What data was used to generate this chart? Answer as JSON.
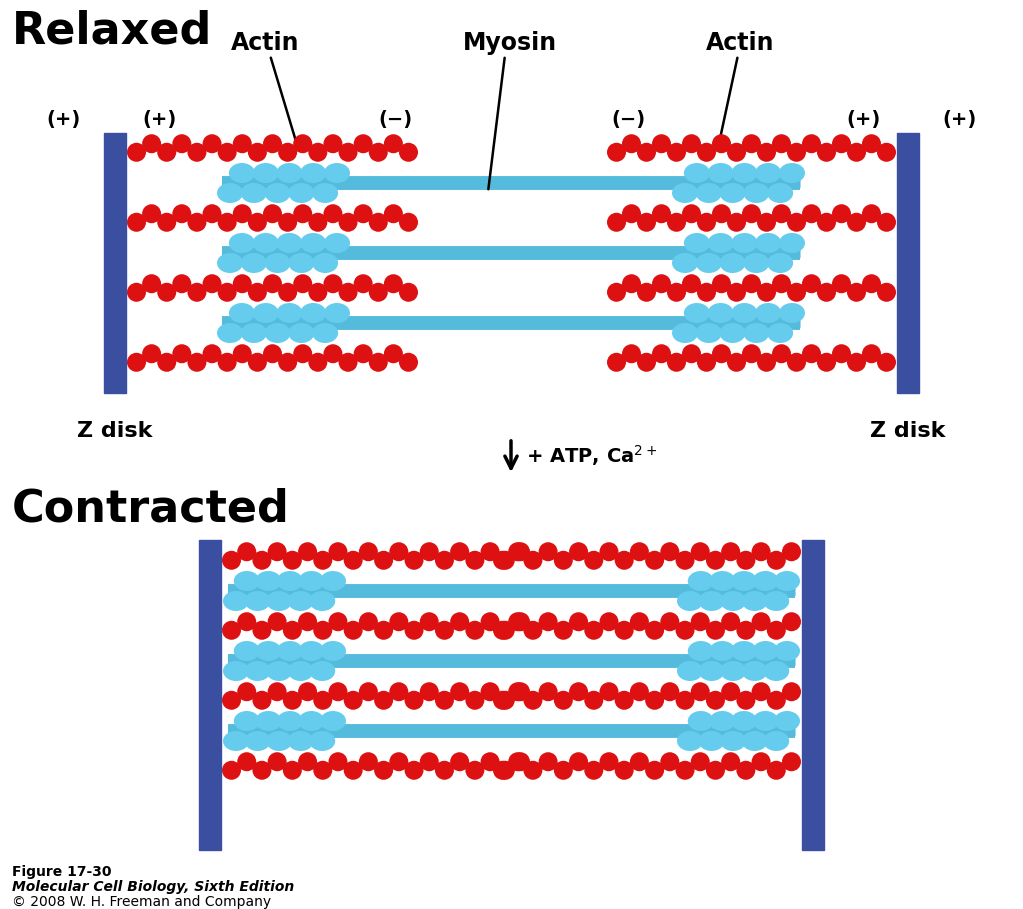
{
  "bg_color": "#ffffff",
  "actin_color": "#dd1111",
  "myosin_shaft_color": "#55bbdd",
  "myosin_head_color": "#66ccee",
  "zdisk_color": "#3a4fa0",
  "text_color": "#000000",
  "title_relaxed": "Relaxed",
  "title_contracted": "Contracted",
  "caption_line1": "Figure 17-30",
  "caption_line2": "Molecular Cell Biology, Sixth Edition",
  "caption_line3": "© 2008 W. H. Freeman and Company",
  "fig_width": 10.23,
  "fig_height": 9.09,
  "dpi": 100
}
